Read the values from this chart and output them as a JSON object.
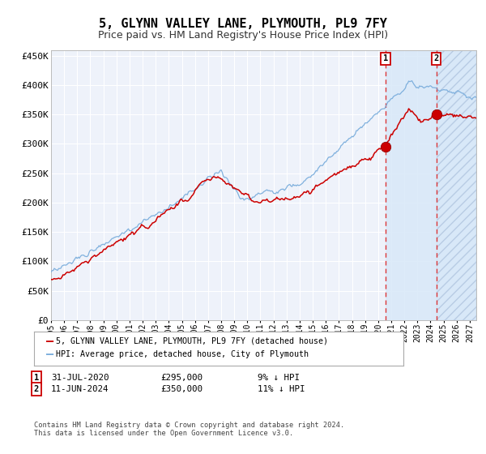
{
  "title": "5, GLYNN VALLEY LANE, PLYMOUTH, PL9 7FY",
  "subtitle": "Price paid vs. HM Land Registry's House Price Index (HPI)",
  "title_fontsize": 11,
  "subtitle_fontsize": 9,
  "ylabel_ticks": [
    "£0",
    "£50K",
    "£100K",
    "£150K",
    "£200K",
    "£250K",
    "£300K",
    "£350K",
    "£400K",
    "£450K"
  ],
  "ytick_values": [
    0,
    50000,
    100000,
    150000,
    200000,
    250000,
    300000,
    350000,
    400000,
    450000
  ],
  "ylim": [
    0,
    460000
  ],
  "xlim_start": 1995.0,
  "xlim_end": 2027.5,
  "sale1_date": 2020.58,
  "sale1_price": 295000,
  "sale2_date": 2024.44,
  "sale2_price": 350000,
  "hpi_color": "#7aaddc",
  "price_color": "#cc0000",
  "bg_color": "#eef2fa",
  "grid_color": "#ffffff",
  "legend1_label": "5, GLYNN VALLEY LANE, PLYMOUTH, PL9 7FY (detached house)",
  "legend2_label": "HPI: Average price, detached house, City of Plymouth",
  "footnote": "Contains HM Land Registry data © Crown copyright and database right 2024.\nThis data is licensed under the Open Government Licence v3.0.",
  "xtick_years": [
    1995,
    1996,
    1997,
    1998,
    1999,
    2000,
    2001,
    2002,
    2003,
    2004,
    2005,
    2006,
    2007,
    2008,
    2009,
    2010,
    2011,
    2012,
    2013,
    2014,
    2015,
    2016,
    2017,
    2018,
    2019,
    2020,
    2021,
    2022,
    2023,
    2024,
    2025,
    2026,
    2027
  ]
}
